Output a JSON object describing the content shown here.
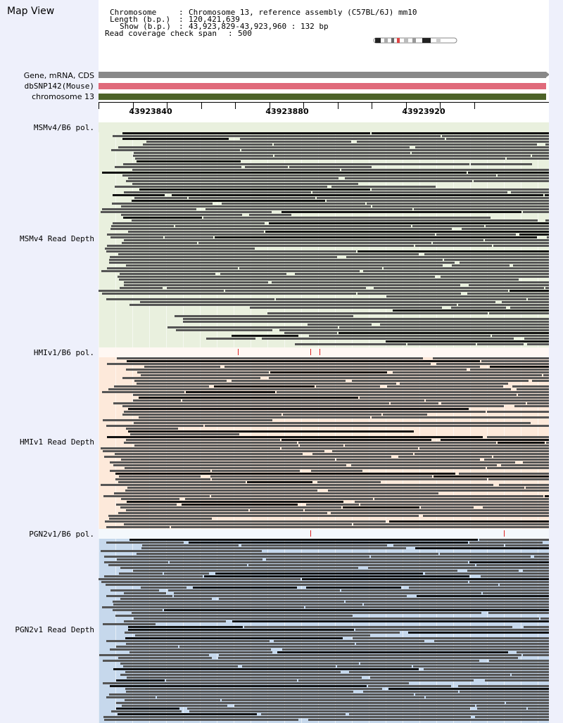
{
  "panel": {
    "title": "Map View"
  },
  "header": {
    "chromosome_key": "Chromosome",
    "chromosome_value": "Chromosome 13, reference assembly (C57BL/6J) mm10",
    "length_key": "Length (b.p.)",
    "length_value": "120,421,639",
    "show_key": "Show (b.p.)",
    "show_value": "43,923,829-43,923,960 : 132 bp",
    "coverage_key": "Read coverage check span",
    "coverage_value": "500"
  },
  "tracks": {
    "gene": "Gene, mRNA, CDS",
    "snp": "dbSNP142(Mouse)",
    "chrom": "chromosome 13"
  },
  "ruler": {
    "labels": [
      "43923840",
      "43923880",
      "43923920"
    ]
  },
  "strains": [
    {
      "pol_label": "MSMv4/B6 pol.",
      "depth_label": "MSMv4 Read Depth",
      "snv_fractions": []
    },
    {
      "pol_label": "HMIv1/B6 pol.",
      "depth_label": "HMIv1 Read Depth",
      "snv_fractions": [
        0.31,
        0.47,
        0.49
      ]
    },
    {
      "pol_label": "PGN2v1/B6 pol.",
      "depth_label": "PGN2v1 Read Depth",
      "snv_fractions": [
        0.47,
        0.9
      ]
    }
  ],
  "colors": {
    "gene_track": "#888888",
    "snp_track": "#e06a7a",
    "chrom_track": "#4d6328",
    "msm_bg": "#e9f0de",
    "hmi_bg": "#fde9da",
    "pgn_bg": "#c6d8ec",
    "read": "#555555",
    "read_dark": "#111111"
  }
}
